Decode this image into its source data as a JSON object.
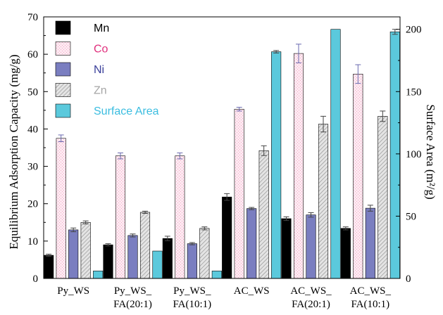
{
  "chart_data": {
    "type": "bar",
    "categories": [
      [
        "Py_WS"
      ],
      [
        "Py_WS_",
        "FA(20:1)"
      ],
      [
        "Py_WS_",
        "FA(10:1)"
      ],
      [
        "AC_WS"
      ],
      [
        "AC_WS_",
        "FA(20:1)"
      ],
      [
        "AC_WS_",
        "FA(10:1)"
      ]
    ],
    "ylabel": "Equilibrium Adsorption Capacity (mg/g)",
    "y2label": "Surface Area (m²/g)",
    "ylim": [
      0,
      70
    ],
    "y2lim": [
      0,
      210
    ],
    "yticks": [
      0,
      10,
      20,
      30,
      40,
      50,
      60,
      70
    ],
    "y2ticks": [
      0,
      50,
      100,
      150,
      200
    ],
    "grid": false,
    "legend_position": "top-left",
    "series": [
      {
        "name": "Mn",
        "axis": "left",
        "color": "#000000",
        "label_color": "#000000",
        "pattern": "solid",
        "values": [
          6.2,
          9.0,
          10.7,
          21.8,
          16.0,
          13.4
        ],
        "errors": [
          0.3,
          0.3,
          0.6,
          0.9,
          0.5,
          0.4
        ]
      },
      {
        "name": "Co",
        "axis": "left",
        "color": "#fde9f1",
        "label_color": "#e0307d",
        "pattern": "pink",
        "values": [
          37.5,
          32.8,
          32.8,
          45.3,
          60.2,
          54.7
        ],
        "errors": [
          0.9,
          0.8,
          0.8,
          0.5,
          2.5,
          2.5
        ]
      },
      {
        "name": "Ni",
        "axis": "left",
        "color": "#7a7ec0",
        "label_color": "#3a3f9a",
        "pattern": "solid",
        "values": [
          13.0,
          11.5,
          9.3,
          18.7,
          17.0,
          18.8
        ],
        "errors": [
          0.5,
          0.4,
          0.3,
          0.3,
          0.6,
          0.8
        ]
      },
      {
        "name": "Zn",
        "axis": "left",
        "color": "#d8d8d8",
        "label_color": "#a6a6a6",
        "pattern": "hatch",
        "values": [
          15.0,
          17.7,
          13.4,
          34.2,
          41.3,
          43.4
        ],
        "errors": [
          0.4,
          0.3,
          0.4,
          1.3,
          2.1,
          1.4
        ]
      },
      {
        "name": "Surface Area",
        "axis": "right",
        "color": "#5bc9dc",
        "label_color": "#3bbde0",
        "pattern": "solid",
        "values": [
          6.0,
          22.0,
          6.0,
          182.0,
          200.0,
          198.0
        ],
        "errors": [
          0,
          0,
          0,
          1.0,
          0,
          2.0
        ]
      }
    ]
  }
}
